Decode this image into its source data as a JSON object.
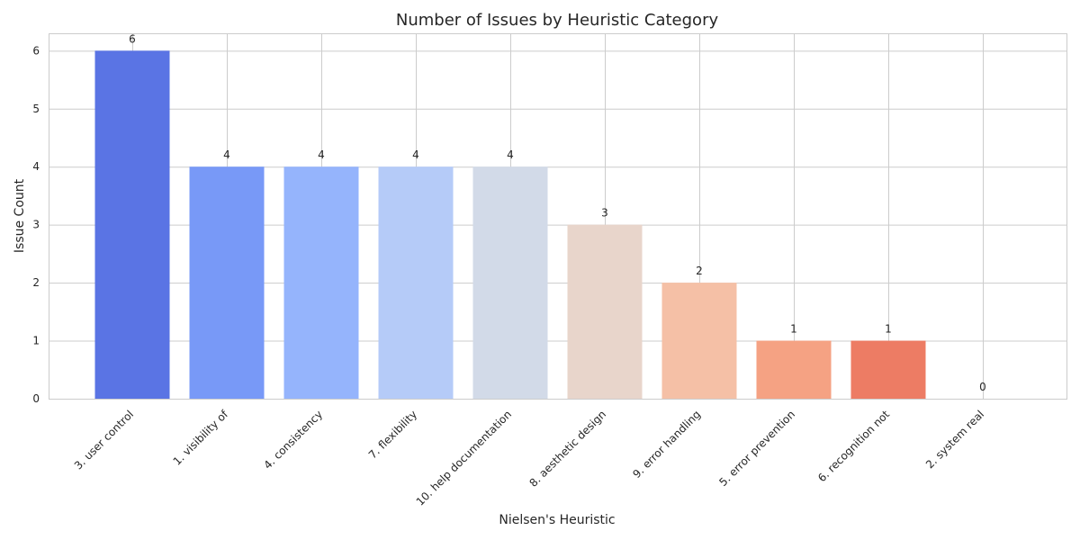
{
  "chart_data": {
    "type": "bar",
    "title": "Number of Issues by Heuristic Category",
    "xlabel": "Nielsen's Heuristic",
    "ylabel": "Issue Count",
    "categories": [
      "3. user control",
      "1. visibility of",
      "4. consistency",
      "7. flexibility",
      "10. help documentation",
      "8. aesthetic design",
      "9. error handling",
      "5. error prevention",
      "6. recognition not",
      "2. system real"
    ],
    "values": [
      6,
      4,
      4,
      4,
      4,
      3,
      2,
      1,
      1,
      0
    ],
    "colors": [
      "#5a74e4",
      "#7899f7",
      "#95b4fc",
      "#b5cbf8",
      "#d2dae8",
      "#e8d5cb",
      "#f5c0a6",
      "#f5a283",
      "#ed7c64",
      "#d2473f"
    ],
    "yticks": [
      0,
      1,
      2,
      3,
      4,
      5,
      6
    ],
    "ylim": [
      0,
      6.3
    ],
    "grid": true,
    "legend": "none"
  }
}
